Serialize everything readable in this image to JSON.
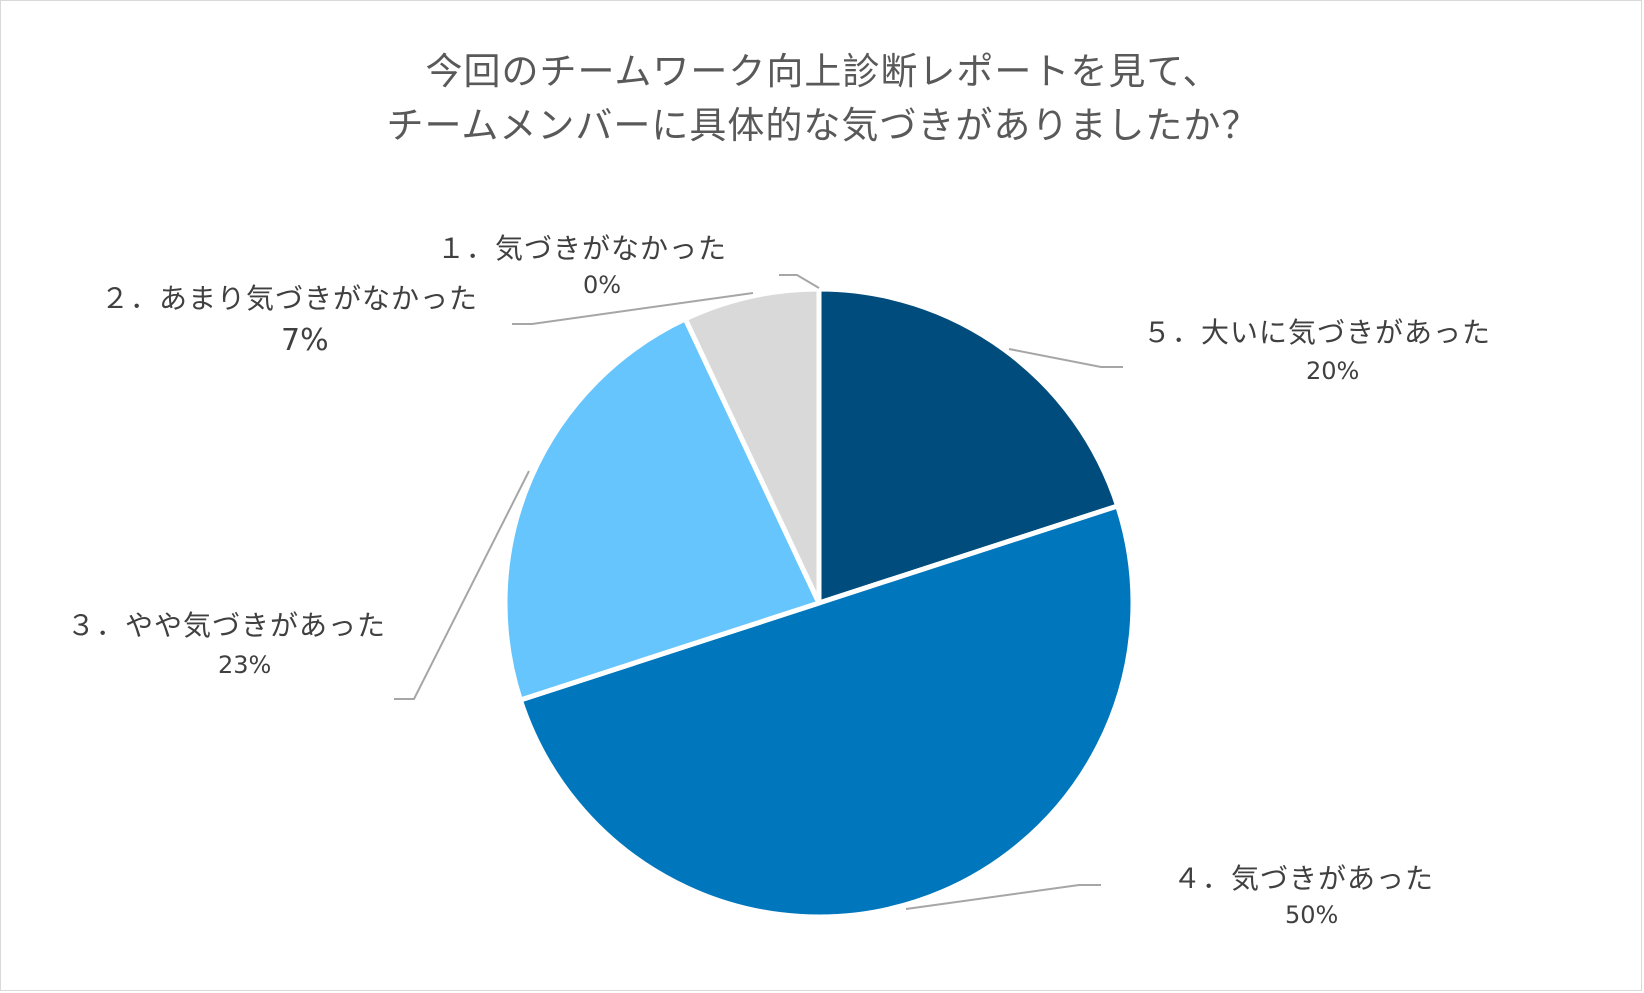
{
  "chart_data": {
    "type": "pie",
    "title_lines": [
      "今回のチームワーク向上診断レポートを見て、",
      "チームメンバーに具体的な気づきがありましたか？"
    ],
    "slices": [
      {
        "label": "５．大いに気づきがあった",
        "value": 20,
        "value_label": "20%",
        "color": "#004c7c"
      },
      {
        "label": "４．気づきがあった",
        "value": 50,
        "value_label": "50%",
        "color": "#0077bd"
      },
      {
        "label": "３．やや気づきがあった",
        "value": 23,
        "value_label": "23%",
        "color": "#66c5fc"
      },
      {
        "label": "２．あまり気づきがなかった",
        "value": 7,
        "value_label": "7%",
        "color": "#d9d9d9"
      },
      {
        "label": "１．気づきがなかった",
        "value": 0,
        "value_label": "0%",
        "color": "#bfbfbf"
      }
    ],
    "start": "12 o'clock, clockwise",
    "legend": "none (leader-line labels)"
  }
}
